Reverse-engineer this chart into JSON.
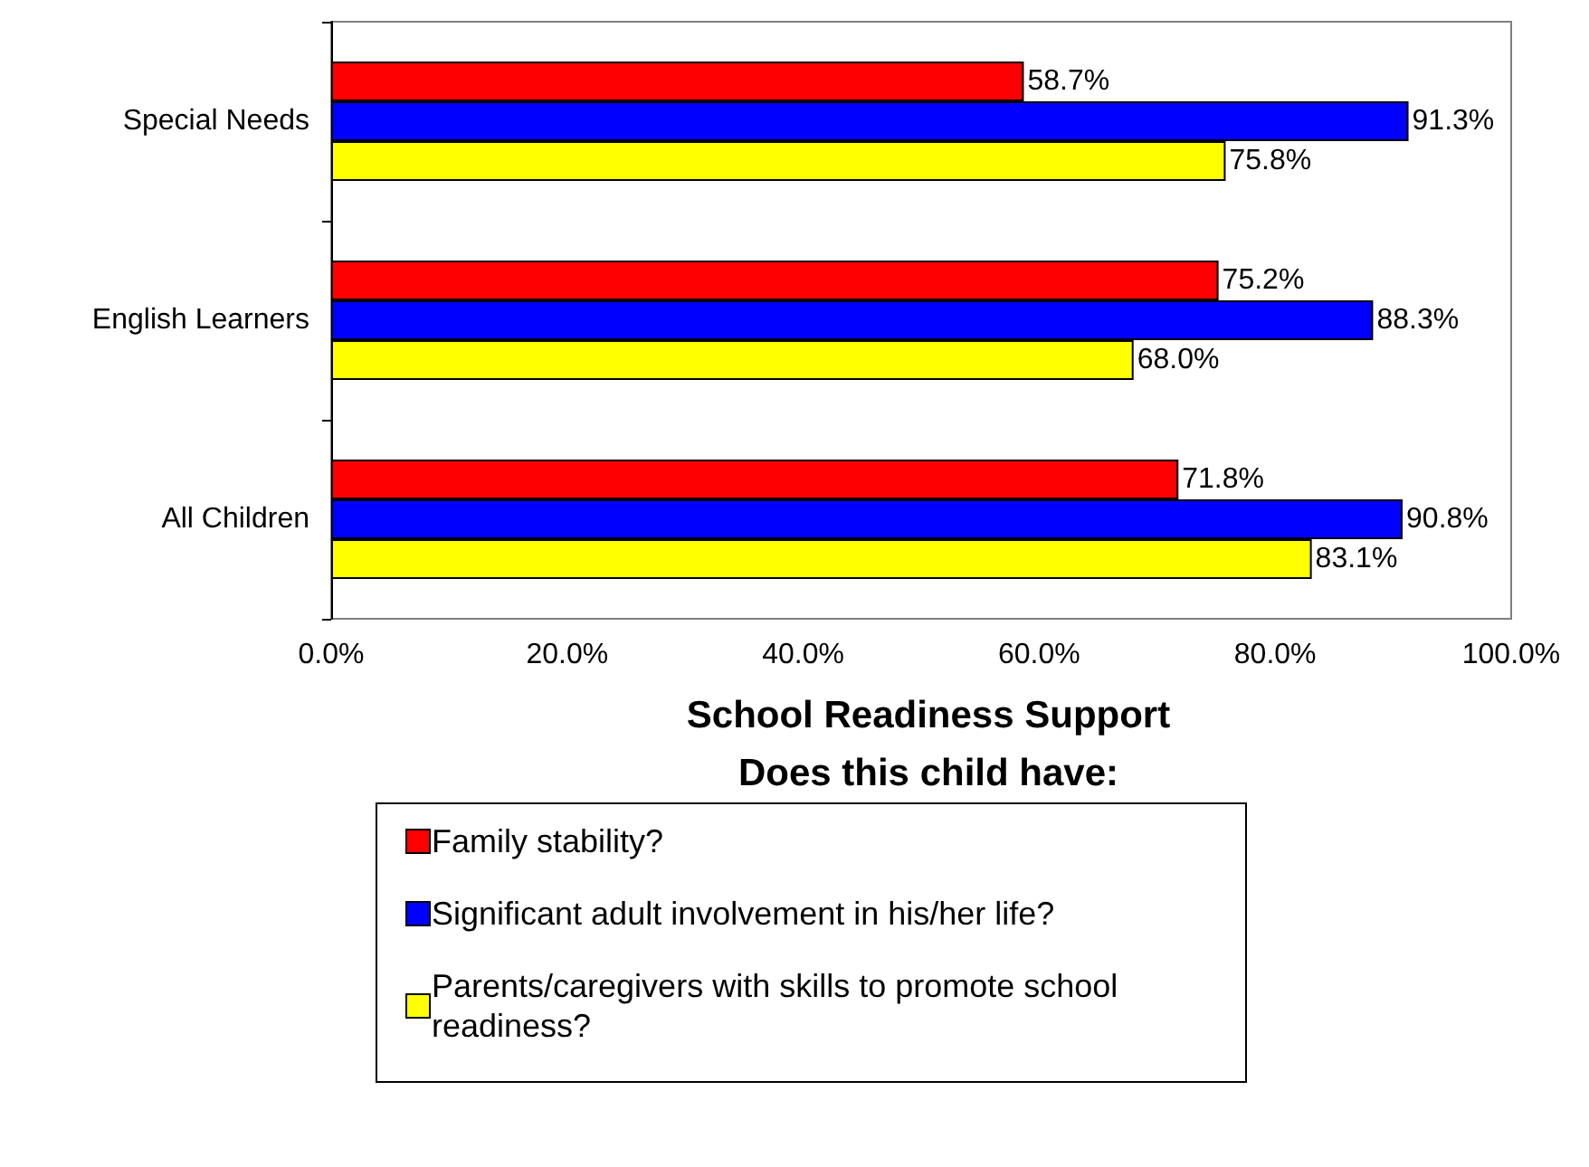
{
  "chart_data": {
    "type": "bar",
    "orientation": "horizontal",
    "title": "School Readiness Support",
    "subtitle": "Does this child have:",
    "categories": [
      "Special Needs",
      "English Learners",
      "All Children"
    ],
    "series": [
      {
        "name": "Family stability?",
        "color": "#ff0000",
        "values": [
          58.7,
          75.2,
          71.8
        ],
        "value_labels": [
          "58.7%",
          "75.2%",
          "71.8%"
        ]
      },
      {
        "name": "Significant adult involvement in his/her life?",
        "color": "#0000ff",
        "values": [
          91.3,
          88.3,
          90.8
        ],
        "value_labels": [
          "91.3%",
          "88.3%",
          "90.8%"
        ]
      },
      {
        "name": "Parents/caregivers with skills to promote school readiness?",
        "color": "#ffff00",
        "values": [
          75.8,
          68.0,
          83.1
        ],
        "value_labels": [
          "75.8%",
          "68.0%",
          "83.1%"
        ]
      }
    ],
    "xlim": [
      0,
      100
    ],
    "xticks": [
      {
        "value": 0,
        "label": "0.0%"
      },
      {
        "value": 20,
        "label": "20.0%"
      },
      {
        "value": 40,
        "label": "40.0%"
      },
      {
        "value": 60,
        "label": "60.0%"
      },
      {
        "value": 80,
        "label": "80.0%"
      },
      {
        "value": 100,
        "label": "100.0%"
      }
    ],
    "grid": false,
    "legend": "bottom"
  }
}
